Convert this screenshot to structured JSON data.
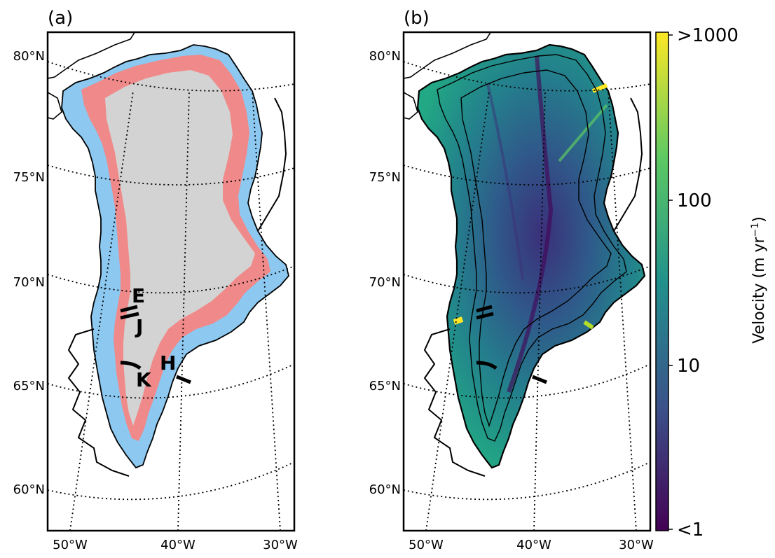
{
  "panels": [
    {
      "label": "(a)",
      "lat_ticks": [
        "80°N",
        "75°N",
        "70°N",
        "65°N",
        "60°N"
      ],
      "lon_ticks": [
        "50°W",
        "40°W",
        "30°W"
      ],
      "transects": [
        "E",
        "J",
        "K",
        "H"
      ]
    },
    {
      "label": "(b)",
      "lat_ticks": [
        "80°N",
        "75°N",
        "70°N",
        "65°N",
        "60°N"
      ],
      "lon_ticks": [
        "50°W",
        "40°W",
        "30°W"
      ]
    }
  ],
  "colorbar": {
    "label_main": "Velocity (m yr",
    "label_sup": "−1",
    "label_close": ")",
    "ticks": [
      ">1000",
      "100",
      "10",
      "<1"
    ],
    "scale": "log",
    "colormap": "viridis",
    "colors": [
      "#440154",
      "#3b528b",
      "#21918c",
      "#5ec962",
      "#fde725"
    ]
  },
  "colors": {
    "ocean": "#ffffff",
    "land": "#ffffff",
    "ice_interior": "#d3d3d3",
    "zone_pink": "#f08a8a",
    "zone_blue": "#8cc8f0",
    "coastline": "#000000"
  }
}
